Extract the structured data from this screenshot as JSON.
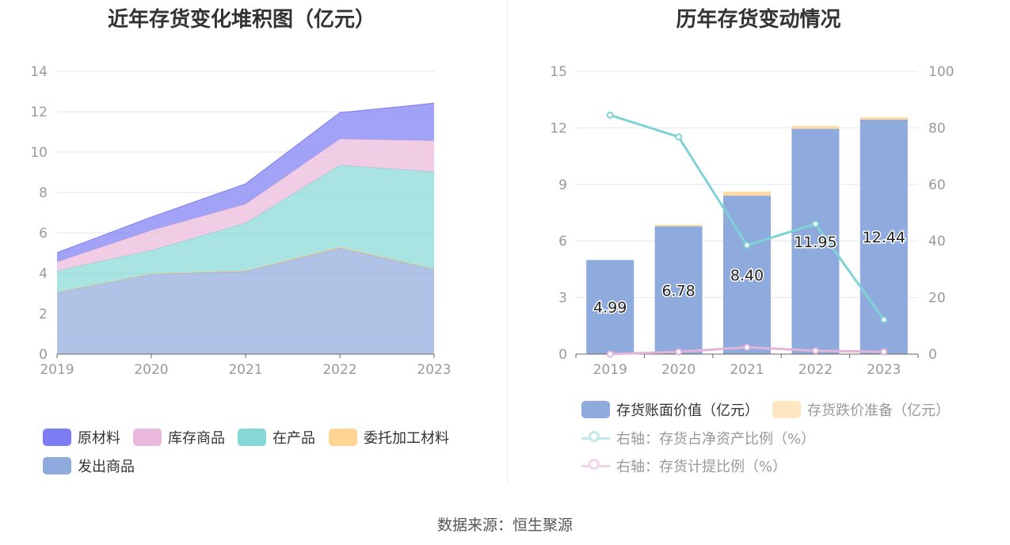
{
  "left_chart": {
    "title": "近年存货变化堆积图（亿元）",
    "chart_data": {
      "type": "area",
      "categories": [
        "2019",
        "2020",
        "2021",
        "2022",
        "2023"
      ],
      "ylim": [
        0,
        14
      ],
      "yticks": [
        "0",
        "2",
        "4",
        "6",
        "8",
        "10",
        "12",
        "14"
      ],
      "stacked": true,
      "series": [
        {
          "name": "发出商品",
          "color": "#8faadc",
          "values": [
            3.05,
            3.95,
            4.1,
            5.25,
            4.2
          ]
        },
        {
          "name": "委托加工材料",
          "color": "#ffd591",
          "values": [
            0.02,
            0.03,
            0.03,
            0.05,
            0.02
          ]
        },
        {
          "name": "在产品",
          "color": "#85d8d6",
          "values": [
            1.05,
            1.15,
            2.35,
            4.05,
            4.8
          ]
        },
        {
          "name": "库存商品",
          "color": "#eab8da",
          "values": [
            0.45,
            1.0,
            0.95,
            1.3,
            1.55
          ]
        },
        {
          "name": "原材料",
          "color": "#7b7cf2",
          "values": [
            0.45,
            0.65,
            1.0,
            1.3,
            1.85
          ]
        }
      ],
      "legend": [
        "原材料",
        "库存商品",
        "在产品",
        "委托加工材料",
        "发出商品"
      ],
      "legend_colors": [
        "#7b7cf2",
        "#eab8da",
        "#85d8d6",
        "#ffd591",
        "#8faadc"
      ]
    }
  },
  "right_chart": {
    "title": "历年存货变动情况",
    "chart_data": {
      "type": "bar",
      "categories": [
        "2019",
        "2020",
        "2021",
        "2022",
        "2023"
      ],
      "ylim_left": [
        0,
        15
      ],
      "yticks_left": [
        "0",
        "3",
        "6",
        "9",
        "12",
        "15"
      ],
      "ylim_right": [
        0,
        100
      ],
      "yticks_right": [
        "0",
        "20",
        "40",
        "60",
        "80",
        "100"
      ],
      "series": [
        {
          "name": "存货账面价值（亿元）",
          "type": "bar",
          "color": "#8faadc",
          "values": [
            4.99,
            6.78,
            8.4,
            11.95,
            12.44
          ],
          "labels": [
            "4.99",
            "6.78",
            "8.40",
            "11.95",
            "12.44"
          ]
        },
        {
          "name": "存货跌价准备（亿元）",
          "type": "bar",
          "color": "#ffe6c2",
          "values": [
            0.0,
            0.08,
            0.22,
            0.15,
            0.12
          ]
        },
        {
          "name": "右轴：存货占净资产比例（%）",
          "type": "line",
          "color": "#7fd3d6",
          "values": [
            84.5,
            76.8,
            38.5,
            46.0,
            12.2
          ]
        },
        {
          "name": "右轴：存货计提比例（%）",
          "type": "line",
          "color": "#e4b4d8",
          "values": [
            0.0,
            0.8,
            2.4,
            1.2,
            0.8
          ]
        }
      ]
    }
  },
  "source": "数据来源：恒生聚源"
}
